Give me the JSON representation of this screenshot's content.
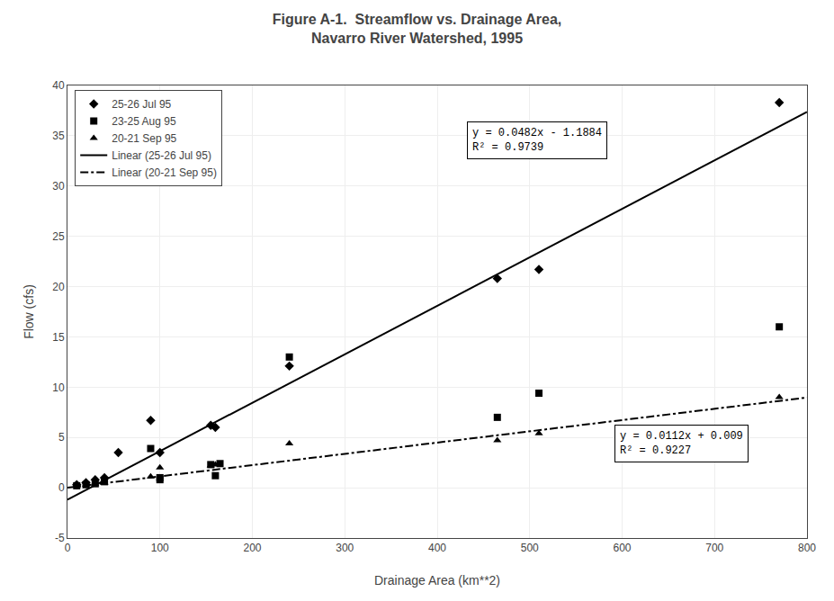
{
  "chart_data": {
    "type": "scatter",
    "title": "Figure A-1.  Streamflow vs. Drainage Area,\nNavarro River Watershed, 1995",
    "xlabel": "Drainage Area (km**2)",
    "ylabel": "Flow (cfs)",
    "xlim": [
      0,
      800
    ],
    "ylim": [
      -5,
      40
    ],
    "xticks": [
      0,
      100,
      200,
      300,
      400,
      500,
      600,
      700,
      800
    ],
    "yticks": [
      -5,
      0,
      5,
      10,
      15,
      20,
      25,
      30,
      35,
      40
    ],
    "grid": true,
    "legend": "upper left",
    "series": [
      {
        "name": "25-26 Jul 95",
        "type": "scatter",
        "color": "#000000",
        "marker": "diamond",
        "x": [
          10,
          20,
          30,
          40,
          55,
          90,
          100,
          155,
          160,
          240,
          465,
          510,
          770
        ],
        "values": [
          0.3,
          0.5,
          0.8,
          1.0,
          3.5,
          6.7,
          3.5,
          6.2,
          6.0,
          12.1,
          20.8,
          21.7,
          38.3
        ]
      },
      {
        "name": "23-25 Aug 95",
        "type": "scatter",
        "color": "#000000",
        "marker": "square",
        "x": [
          10,
          20,
          30,
          40,
          90,
          100,
          100,
          155,
          160,
          165,
          240,
          465,
          510,
          770
        ],
        "values": [
          0.2,
          0.3,
          0.4,
          0.6,
          3.9,
          0.8,
          1.0,
          2.3,
          1.2,
          2.4,
          13.0,
          7.0,
          9.4,
          16.0
        ]
      },
      {
        "name": "20-21 Sep 95",
        "type": "scatter",
        "color": "#000000",
        "marker": "triangle",
        "x": [
          10,
          20,
          30,
          40,
          90,
          100,
          155,
          160,
          240,
          465,
          510,
          770
        ],
        "values": [
          0.2,
          0.3,
          0.35,
          0.5,
          1.1,
          2.0,
          2.2,
          2.3,
          4.4,
          4.7,
          5.4,
          9.0
        ]
      },
      {
        "name": "Linear (25-26 Jul 95)",
        "type": "line",
        "color": "#000000",
        "line_style": "solid",
        "x": [
          0,
          800
        ],
        "values": [
          -1.1884,
          37.3716
        ]
      },
      {
        "name": "Linear (20-21 Sep 95)",
        "type": "line",
        "color": "#000000",
        "line_style": "dashdot",
        "x": [
          0,
          800
        ],
        "values": [
          0.009,
          8.969
        ]
      }
    ],
    "annotations": [
      {
        "text": "y = 0.0482x - 1.1884\nR² = 0.9739"
      },
      {
        "text": "y = 0.0112x + 0.009\nR² = 0.9227"
      }
    ]
  }
}
